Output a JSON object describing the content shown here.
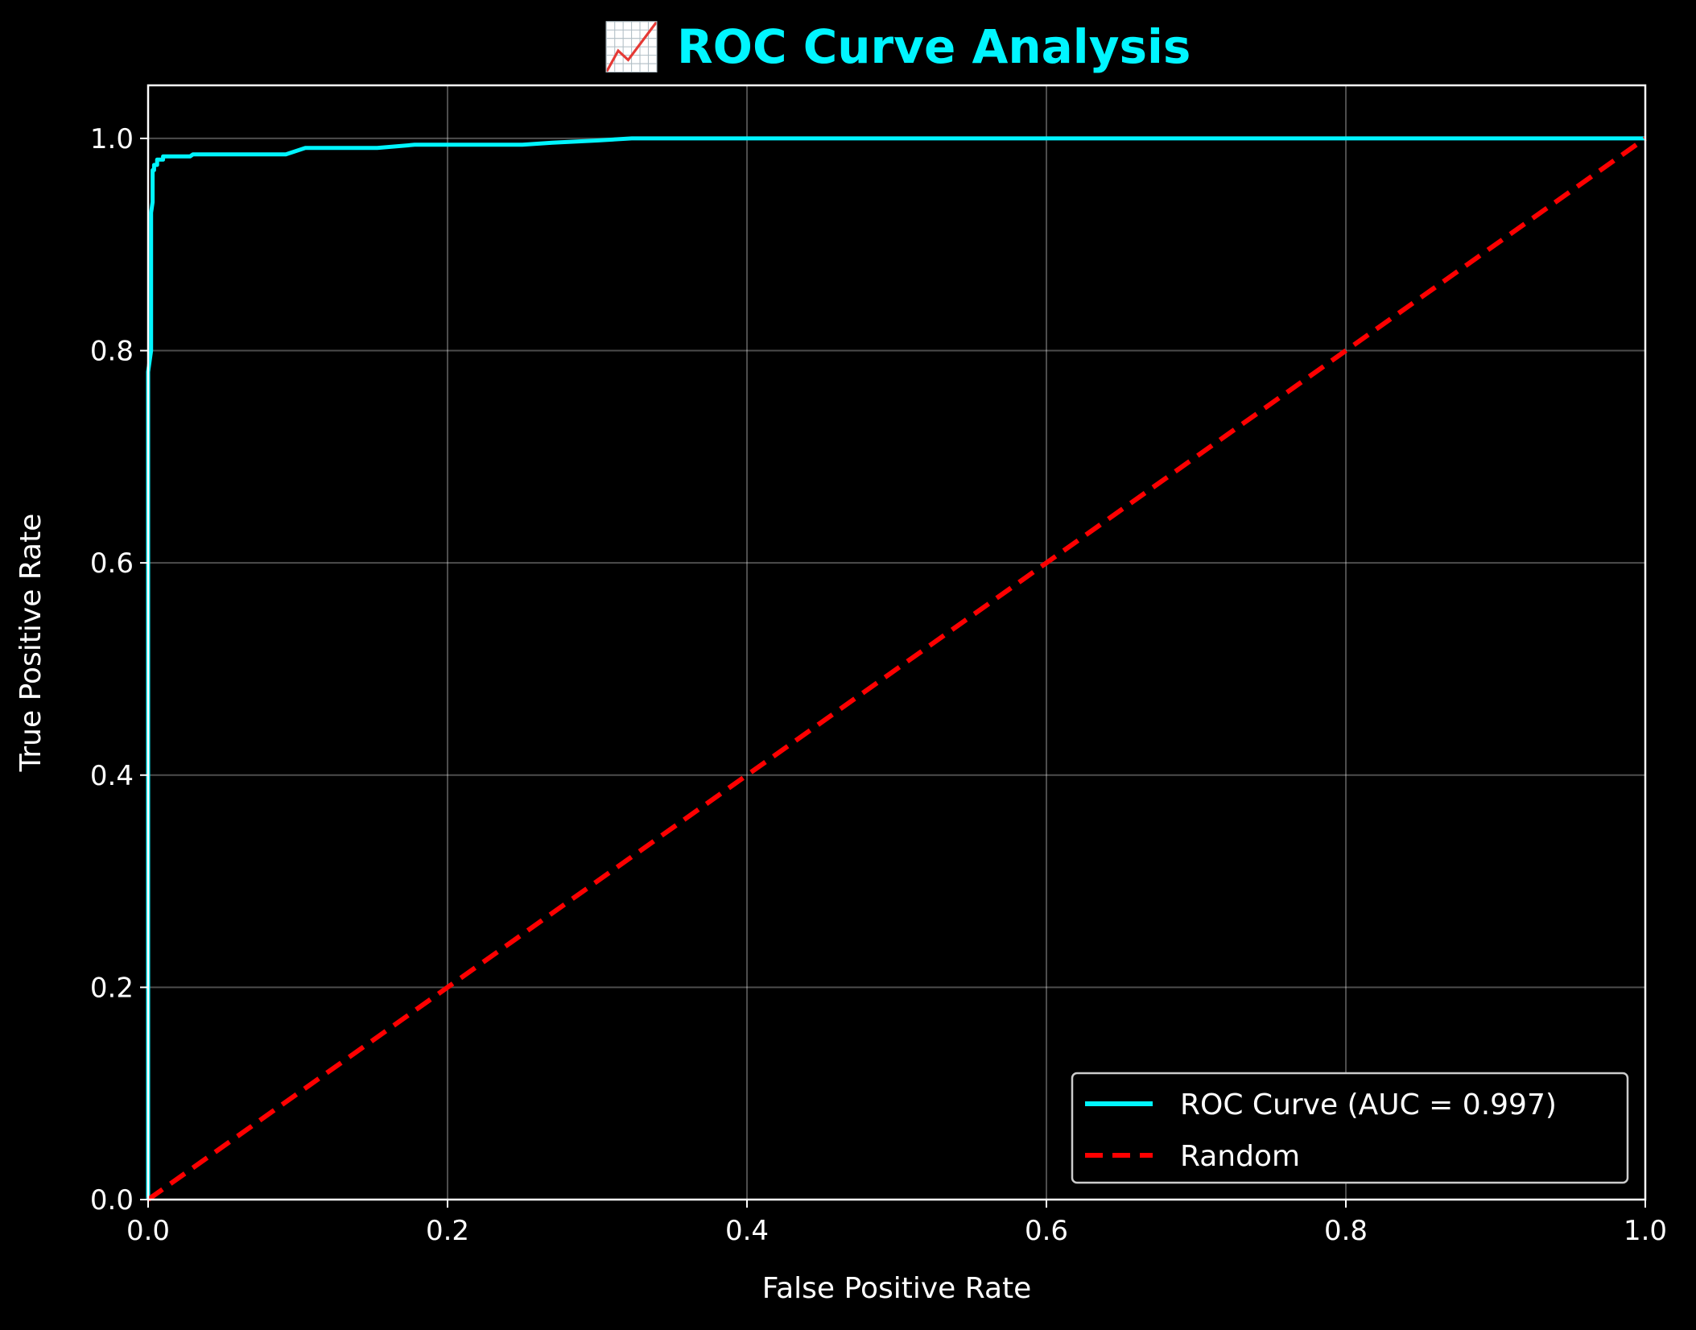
{
  "chart_data": {
    "type": "line",
    "title": "📈 ROC Curve Analysis",
    "xlabel": "False Positive Rate",
    "ylabel": "True Positive Rate",
    "xlim": [
      0.0,
      1.0
    ],
    "ylim": [
      0.0,
      1.05
    ],
    "x_ticks": [
      "0.0",
      "0.2",
      "0.4",
      "0.6",
      "0.8",
      "1.0"
    ],
    "y_ticks": [
      "0.0",
      "0.2",
      "0.4",
      "0.6",
      "0.8",
      "1.0"
    ],
    "x_tick_values": [
      0.0,
      0.2,
      0.4,
      0.6,
      0.8,
      1.0
    ],
    "y_tick_values": [
      0.0,
      0.2,
      0.4,
      0.6,
      0.8,
      1.0
    ],
    "grid": true,
    "legend_position": "lower-right",
    "background": "#000000",
    "series": [
      {
        "name": "ROC Curve (AUC = 0.997)",
        "color": "#00f5ff",
        "style": "solid",
        "x": [
          0.0,
          0.0,
          0.0,
          0.002,
          0.002,
          0.003,
          0.003,
          0.004,
          0.004,
          0.006,
          0.006,
          0.008,
          0.008,
          0.01,
          0.01,
          0.028,
          0.03,
          0.092,
          0.105,
          0.153,
          0.178,
          0.25,
          0.27,
          0.3,
          0.323,
          1.0
        ],
        "y": [
          0.0,
          0.5,
          0.78,
          0.8,
          0.93,
          0.94,
          0.97,
          0.97,
          0.975,
          0.975,
          0.98,
          0.98,
          0.98,
          0.98,
          0.983,
          0.983,
          0.985,
          0.985,
          0.991,
          0.991,
          0.994,
          0.994,
          0.996,
          0.998,
          1.0,
          1.0
        ]
      },
      {
        "name": "Random",
        "color": "#ff0000",
        "style": "dashed",
        "x": [
          0.0,
          1.0
        ],
        "y": [
          0.0,
          1.0
        ]
      }
    ]
  }
}
